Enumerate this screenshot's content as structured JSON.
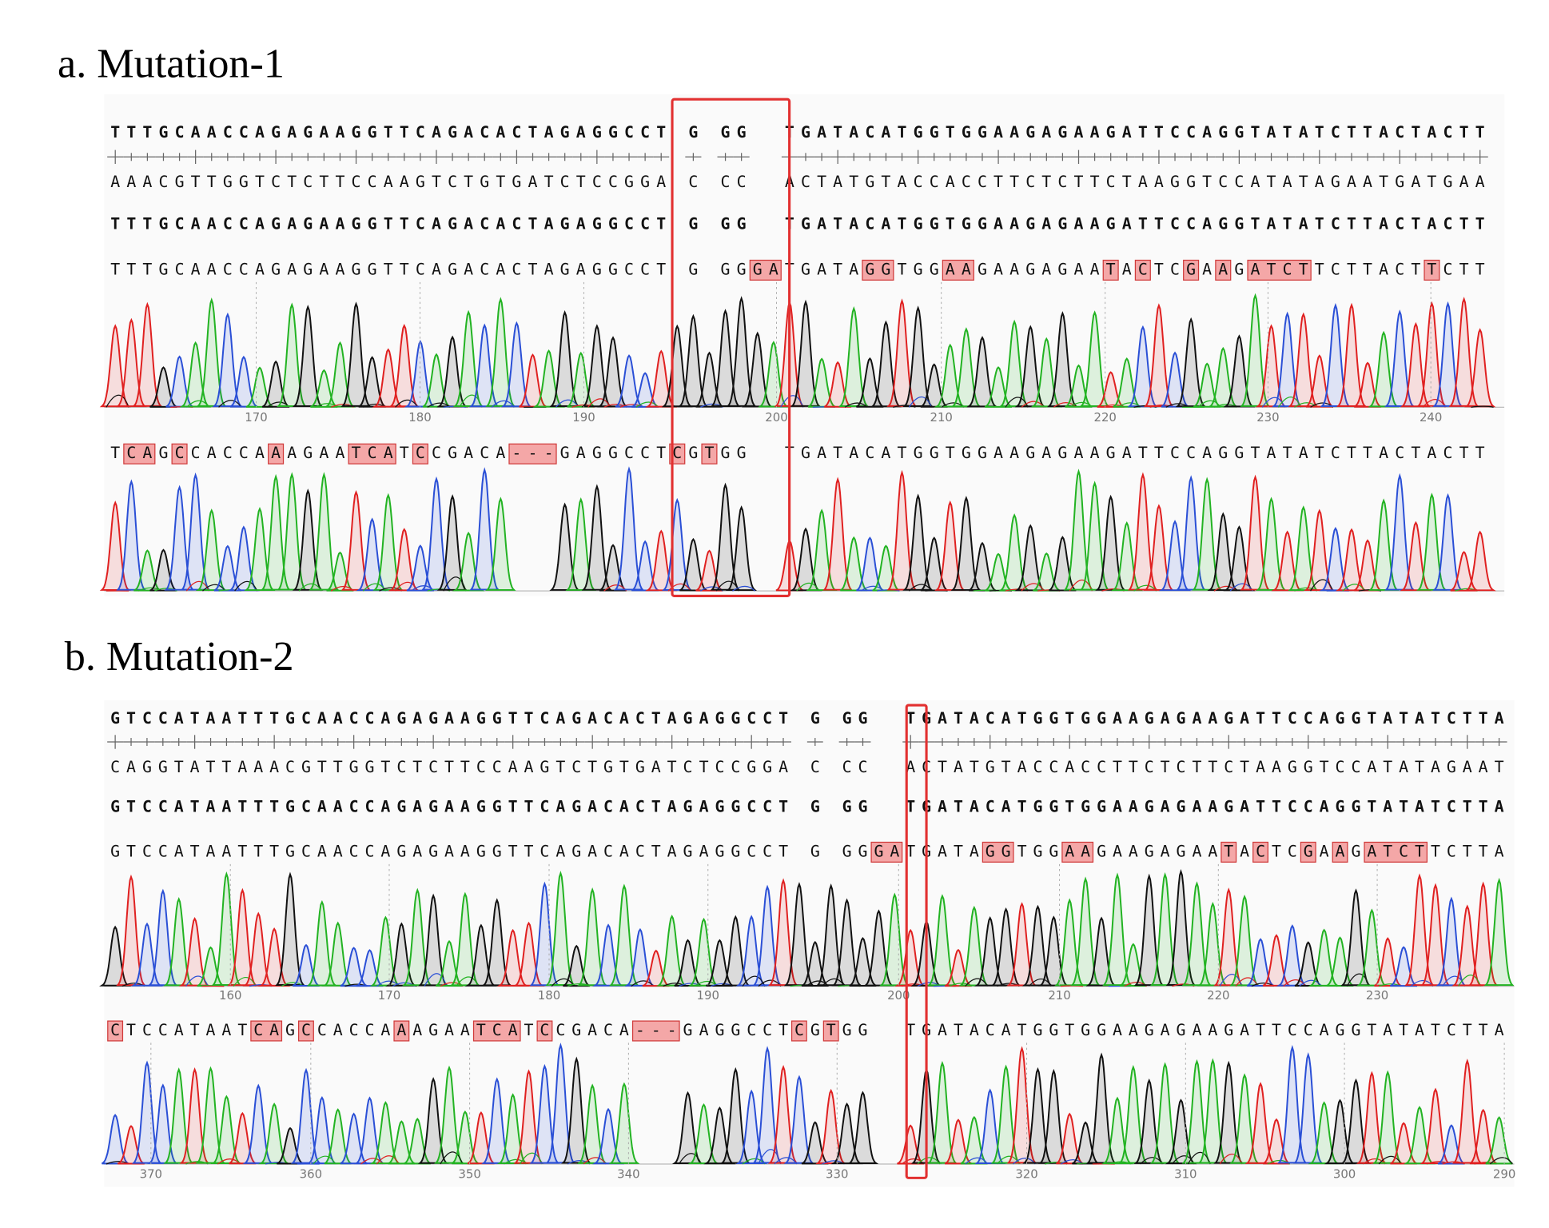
{
  "panels": [
    {
      "title": "a. Mutation-1",
      "rows": [
        [
          {
            "text": "TTTGCAACCAGAGAAGGTTCAGACACTAGAGGCCT G GG  TGATACATGGTGGAAGAGAAGATTCCAGGTATATCTTACTACTT",
            "highlight": false
          }
        ],
        [
          {
            "text": "AAACGTTGGTCTCTTCCAAGTCTGTGATCTCCGGA C CC  ACTATGTACCACCTTCTCTTCTAAGGTCCATATAGAATGATGAA",
            "highlight": false
          }
        ],
        [
          {
            "text": "TTTGCAACCAGAGAAGGTTCAGACACTAGAGGCCT G GG  TGATACATGGTGGAAGAGAAGATTCCAGGTATATCTTACTACTT",
            "highlight": false
          }
        ],
        [
          {
            "text": "TTTGCAACCAGAGAAGGTTCAGACACTAGAGGCCT G GG",
            "highlight": false
          },
          {
            "text": "GA",
            "highlight": true
          },
          {
            "text": "TGATA",
            "highlight": false
          },
          {
            "text": "GG",
            "highlight": true
          },
          {
            "text": "TGG",
            "highlight": false
          },
          {
            "text": "AA",
            "highlight": true
          },
          {
            "text": "GAAGAGAA",
            "highlight": false
          },
          {
            "text": "T",
            "highlight": true
          },
          {
            "text": "A",
            "highlight": false
          },
          {
            "text": "C",
            "highlight": true
          },
          {
            "text": "TC",
            "highlight": false
          },
          {
            "text": "G",
            "highlight": true
          },
          {
            "text": "A",
            "highlight": false
          },
          {
            "text": "A",
            "highlight": true
          },
          {
            "text": "G",
            "highlight": false
          },
          {
            "text": "ATCT",
            "highlight": true
          },
          {
            "text": "TCTTACT",
            "highlight": false
          },
          {
            "text": "T",
            "highlight": true
          },
          {
            "text": "CTT",
            "highlight": false
          }
        ],
        [
          {
            "text": "T",
            "highlight": false
          },
          {
            "text": "CA",
            "highlight": true
          },
          {
            "text": "G",
            "highlight": false
          },
          {
            "text": "C",
            "highlight": true
          },
          {
            "text": "CACCA",
            "highlight": false
          },
          {
            "text": "A",
            "highlight": true
          },
          {
            "text": "AGAA",
            "highlight": false
          },
          {
            "text": "TCA",
            "highlight": true
          },
          {
            "text": "T",
            "highlight": false
          },
          {
            "text": "C",
            "highlight": true
          },
          {
            "text": "CGACA",
            "highlight": false
          },
          {
            "text": "---",
            "highlight": true
          },
          {
            "text": "GAGGCCT",
            "highlight": false
          },
          {
            "text": "C",
            "highlight": true
          },
          {
            "text": "G",
            "highlight": false
          },
          {
            "text": "T",
            "highlight": true
          },
          {
            "text": "GG  TGATACATGGTGGAAGAGAAGATTCCAGGTATATCTTACTACTT",
            "highlight": false
          }
        ]
      ],
      "trace_ticks": [
        170,
        180,
        190,
        200,
        210,
        220,
        230,
        240
      ],
      "reverse_trace_ticks": []
    },
    {
      "title": "b. Mutation-2",
      "rows": [
        [
          {
            "text": "GTCCATAATTTGCAACCAGAGAAGGTTCAGACACTAGAGGCCT G GG  TGATACATGGTGGAAGAGAAGATTCCAGGTATATCTTA",
            "highlight": false
          }
        ],
        [
          {
            "text": "CAGGTATTAAACGTTGGTCTCTTCCAAGTCTGTGATCTCCGGA C CC  ACTATGTACCACCTTCTCTTCTAAGGTCCATATAGAAT",
            "highlight": false
          }
        ],
        [
          {
            "text": "GTCCATAATTTGCAACCAGAGAAGGTTCAGACACTAGAGGCCT G GG  TGATACATGGTGGAAGAGAAGATTCCAGGTATATCTTA",
            "highlight": false
          }
        ],
        [
          {
            "text": "GTCCATAATTTGCAACCAGAGAAGGTTCAGACACTAGAGGCCT G GG",
            "highlight": false
          },
          {
            "text": "GA",
            "highlight": true
          },
          {
            "text": "TGATA",
            "highlight": false
          },
          {
            "text": "GG",
            "highlight": true
          },
          {
            "text": "TGG",
            "highlight": false
          },
          {
            "text": "AA",
            "highlight": true
          },
          {
            "text": "GAAGAGAA",
            "highlight": false
          },
          {
            "text": "T",
            "highlight": true
          },
          {
            "text": "A",
            "highlight": false
          },
          {
            "text": "C",
            "highlight": true
          },
          {
            "text": "TC",
            "highlight": false
          },
          {
            "text": "G",
            "highlight": true
          },
          {
            "text": "A",
            "highlight": false
          },
          {
            "text": "A",
            "highlight": true
          },
          {
            "text": "G",
            "highlight": false
          },
          {
            "text": "ATCT",
            "highlight": true
          },
          {
            "text": "TCTTA",
            "highlight": false
          }
        ],
        [
          {
            "text": "C",
            "highlight": true
          },
          {
            "text": "TCCATAAT",
            "highlight": false
          },
          {
            "text": "CA",
            "highlight": true
          },
          {
            "text": "G",
            "highlight": false
          },
          {
            "text": "C",
            "highlight": true
          },
          {
            "text": "CACCA",
            "highlight": false
          },
          {
            "text": "A",
            "highlight": true
          },
          {
            "text": "AGAA",
            "highlight": false
          },
          {
            "text": "TCA",
            "highlight": true
          },
          {
            "text": "T",
            "highlight": false
          },
          {
            "text": "C",
            "highlight": true
          },
          {
            "text": "CGACA",
            "highlight": false
          },
          {
            "text": "---",
            "highlight": true
          },
          {
            "text": "GAGGCCT",
            "highlight": false
          },
          {
            "text": "C",
            "highlight": true
          },
          {
            "text": "G",
            "highlight": false
          },
          {
            "text": "T",
            "highlight": true
          },
          {
            "text": "GG  TGATACATGGTGGAAGAGAAGATTCCAGGTATATCTTA",
            "highlight": false
          }
        ]
      ],
      "trace_ticks": [
        160,
        170,
        180,
        190,
        200,
        210,
        220,
        230
      ],
      "reverse_trace_ticks": [
        370,
        360,
        350,
        340,
        330,
        320,
        310,
        300,
        290
      ]
    }
  ]
}
